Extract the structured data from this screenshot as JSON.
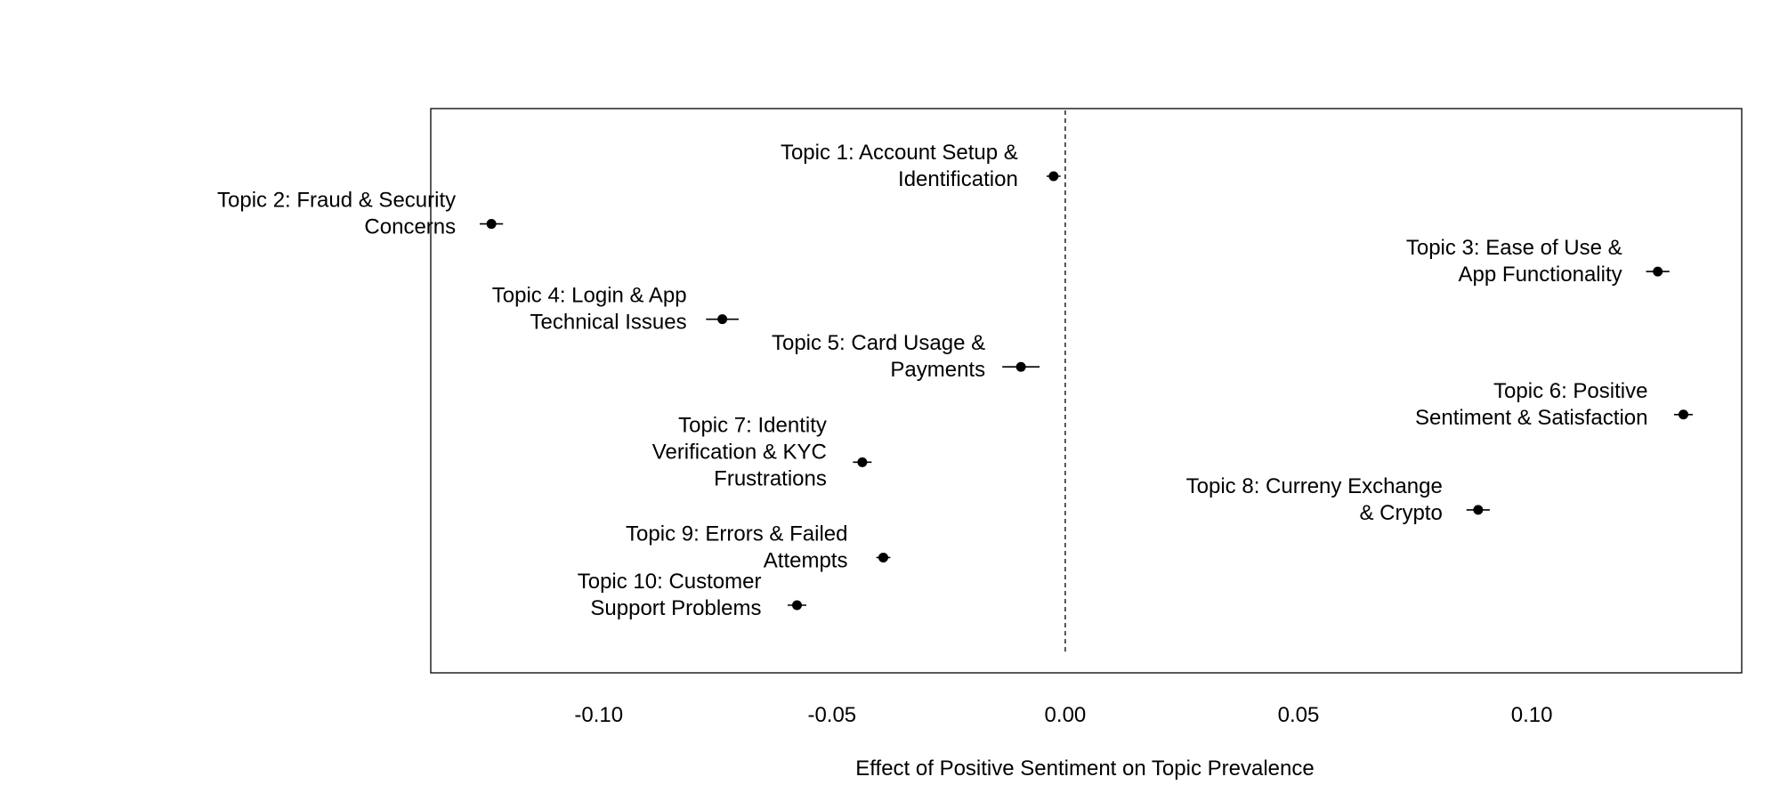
{
  "chart_data": {
    "type": "scatter",
    "title": "",
    "xlabel": "Effect of Positive Sentiment on Topic Prevalence",
    "ylabel": "",
    "xlim": [
      -0.136,
      0.145
    ],
    "xticks": [
      -0.1,
      -0.05,
      0.0,
      0.05,
      0.1
    ],
    "xtick_labels": [
      "-0.10",
      "-0.05",
      "0.00",
      "0.05",
      "0.10"
    ],
    "reference_line_x": 0.0,
    "grid": false,
    "legend": "none",
    "point_color": "#000000",
    "points": [
      {
        "label_lines": [
          "Topic 1: Account Setup &",
          "Identification"
        ],
        "estimate": -0.0025,
        "ci": [
          -0.004,
          -0.001
        ]
      },
      {
        "label_lines": [
          "Topic 2: Fraud & Security",
          "Concerns"
        ],
        "estimate": -0.123,
        "ci": [
          -0.1255,
          -0.1205
        ]
      },
      {
        "label_lines": [
          "Topic 3: Ease of Use &",
          "App Functionality"
        ],
        "estimate": 0.127,
        "ci": [
          0.1245,
          0.1295
        ]
      },
      {
        "label_lines": [
          "Topic 4: Login & App",
          "Technical Issues"
        ],
        "estimate": -0.0735,
        "ci": [
          -0.077,
          -0.07
        ]
      },
      {
        "label_lines": [
          "Topic 5: Card Usage &",
          "Payments"
        ],
        "estimate": -0.0095,
        "ci": [
          -0.0135,
          -0.0055
        ]
      },
      {
        "label_lines": [
          "Topic 6: Positive",
          "Sentiment & Satisfaction"
        ],
        "estimate": 0.1325,
        "ci": [
          0.1305,
          0.1345
        ]
      },
      {
        "label_lines": [
          "Topic 7: Identity",
          "Verification & KYC",
          "Frustrations"
        ],
        "estimate": -0.0435,
        "ci": [
          -0.0455,
          -0.0415
        ]
      },
      {
        "label_lines": [
          "Topic 8: Curreny Exchange",
          "& Crypto"
        ],
        "estimate": 0.0885,
        "ci": [
          0.086,
          0.091
        ]
      },
      {
        "label_lines": [
          "Topic 9: Errors & Failed",
          "Attempts"
        ],
        "estimate": -0.039,
        "ci": [
          -0.0405,
          -0.0375
        ]
      },
      {
        "label_lines": [
          "Topic 10: Customer",
          "Support Problems"
        ],
        "estimate": -0.0575,
        "ci": [
          -0.0595,
          -0.0555
        ]
      }
    ]
  }
}
